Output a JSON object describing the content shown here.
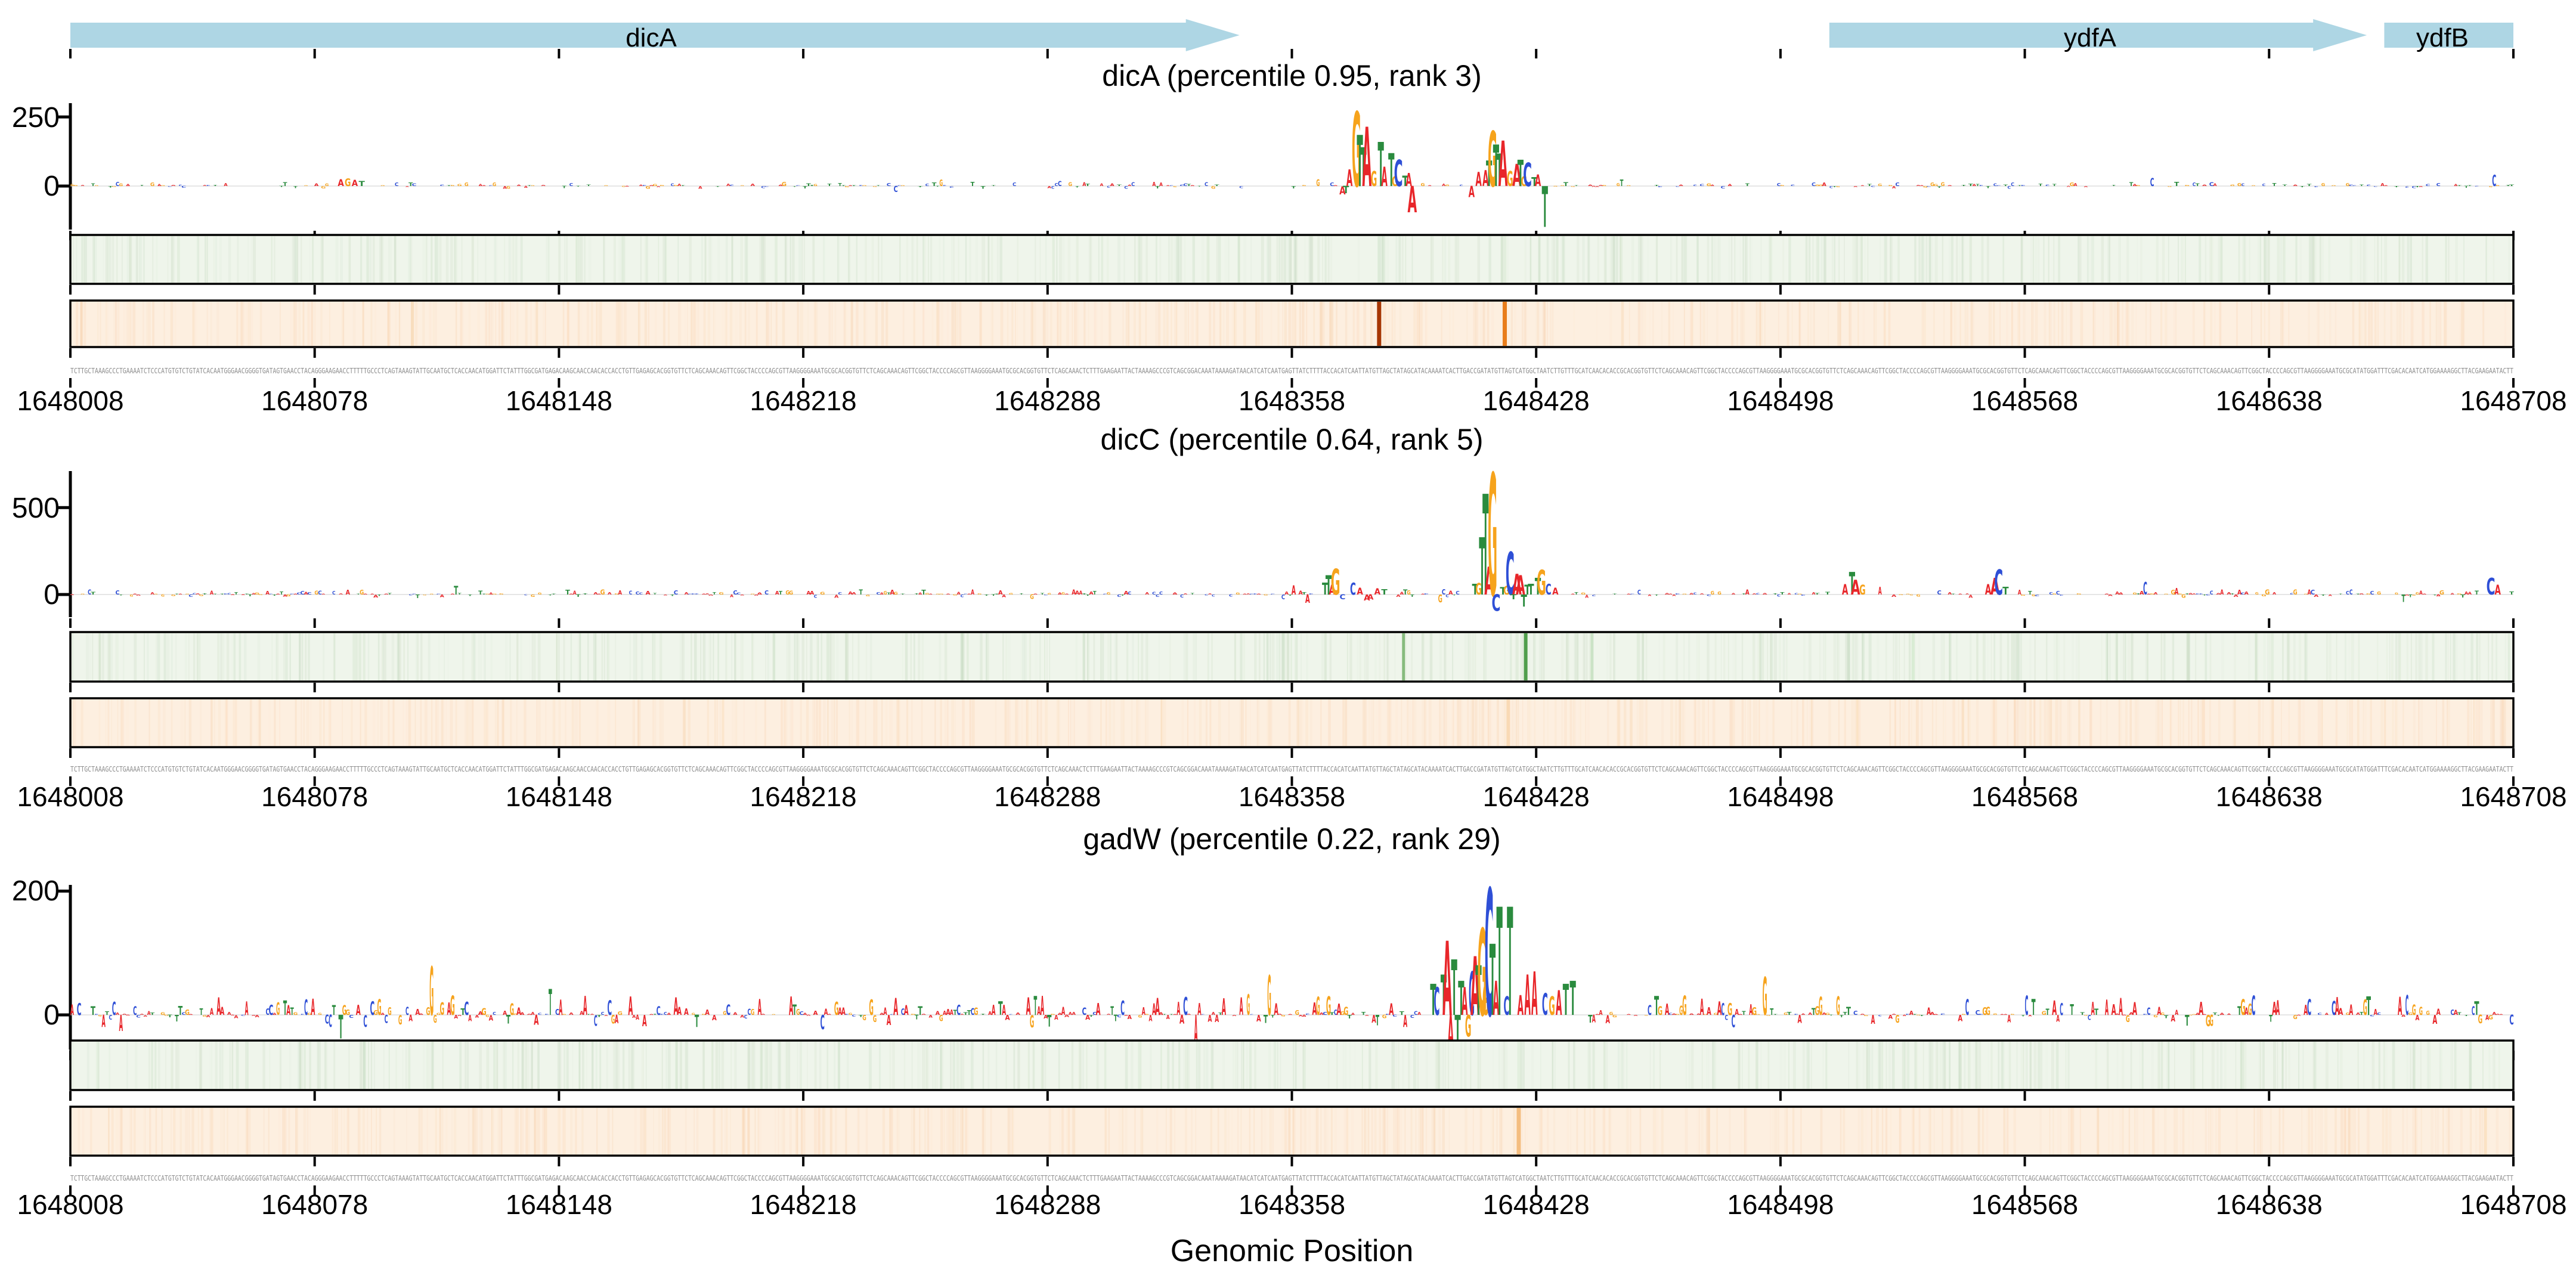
{
  "figure": {
    "background": "#ffffff",
    "xlabel": "Genomic Position"
  },
  "axis": {
    "start": 1648008,
    "end": 1648708,
    "tick_step": 70,
    "tick_labels": [
      "1648008",
      "1648078",
      "1648148",
      "1648218",
      "1648288",
      "1648358",
      "1648428",
      "1648498",
      "1648568",
      "1648638",
      "1648708"
    ]
  },
  "genes": [
    {
      "name": "dicA",
      "start": 1648008,
      "end": 1648343,
      "arrow": true
    },
    {
      "name": "ydfA",
      "start": 1648512,
      "end": 1648666,
      "arrow": true
    },
    {
      "name": "ydfB",
      "start": 1648671,
      "end": 1648708,
      "arrow": false
    }
  ],
  "colors": {
    "gene": "#aed6e4",
    "axis": "#000000",
    "seq_text": "#8c8c8c",
    "base_A": "#e8262a",
    "base_C": "#2e4fd6",
    "base_G": "#f6a31c",
    "base_T": "#2a8b3e",
    "green_strip_bg": "#eff5eb",
    "green_texture": "#7aa86f",
    "orange_strip_bg": "#fdefe0",
    "orange_texture": "#f0a860"
  },
  "sequence": {
    "start_fragment": "TCTTGCTAAAGCCCTGAAAATCTCCCATGTGTCTGTATCACAATGGGAACGGGGTGATAGTGAACCTACAGGGAAGAACCTTTTTGCCCTCAGTAAAGTATTGCAATGCTCACCAACATGGATTCTATTTGGCGATGAGACAAGCAACCAACACCACCTGTTGAGA",
    "mid_fragment": "TCTTTGAAGAATTACTAAAAGCCCGTCAGCGGACAAATAAAAGATAACATCATCAATGAGTTATCTTTTACCACATCAATTATGTTAGCTATAGCATACAAAATCACTTGACCGATATGTTAGTCATGGCTAATCTTGTTTGCATCAACACACC",
    "end_fragment": "ATATGGATTTCGACACAATCATGGAAAAGGCTTACGAAGAATACTT",
    "filler": "GCACGGTGTTCTCAGCAAACAGTTCGGCTACCCCAGCGTTAAGGGGAAATGC"
  },
  "chart_data": [
    {
      "type": "sequence-logo",
      "name": "dicA",
      "title": "dicA (percentile 0.95, rank 3)",
      "percentile": 0.95,
      "rank": 3,
      "ylim": [
        -160,
        300
      ],
      "yticks": [
        0,
        250
      ],
      "ymax_label": "250",
      "zero_label": "0",
      "peaks": [
        [
          1648085,
          "A",
          25
        ],
        [
          1648087,
          "G",
          28
        ],
        [
          1648089,
          "A",
          22
        ],
        [
          1648091,
          "T",
          18
        ],
        [
          1648372,
          "A",
          -30
        ],
        [
          1648373,
          "T",
          -26
        ],
        [
          1648374,
          "A",
          60
        ],
        [
          1648376,
          "G",
          270
        ],
        [
          1648377,
          "T",
          185
        ],
        [
          1648378,
          "T",
          140
        ],
        [
          1648379,
          "A",
          215
        ],
        [
          1648381,
          "G",
          55
        ],
        [
          1648383,
          "T",
          160
        ],
        [
          1648384,
          "A",
          70
        ],
        [
          1648386,
          "T",
          120
        ],
        [
          1648387,
          "G",
          35
        ],
        [
          1648388,
          "C",
          95
        ],
        [
          1648390,
          "T",
          38
        ],
        [
          1648391,
          "A",
          48
        ],
        [
          1648392,
          "A",
          -95
        ],
        [
          1648409,
          "A",
          -40
        ],
        [
          1648411,
          "A",
          50
        ],
        [
          1648413,
          "A",
          58
        ],
        [
          1648414,
          "T",
          92
        ],
        [
          1648415,
          "G",
          200
        ],
        [
          1648416,
          "T",
          150
        ],
        [
          1648417,
          "T",
          118
        ],
        [
          1648418,
          "A",
          165
        ],
        [
          1648420,
          "G",
          55
        ],
        [
          1648422,
          "A",
          80
        ],
        [
          1648423,
          "T",
          95
        ],
        [
          1648424,
          "G",
          35
        ],
        [
          1648425,
          "C",
          85
        ],
        [
          1648427,
          "T",
          32
        ],
        [
          1648428,
          "A",
          42
        ],
        [
          1648430,
          "T",
          -148
        ]
      ],
      "exclude": [
        [
          1648371,
          1648393
        ],
        [
          1648408,
          1648432
        ],
        [
          1648083,
          1648093
        ]
      ],
      "noise": {
        "seed": 11,
        "amp": 14,
        "density": 0.55,
        "red_bias": 0.0
      },
      "green_lines": [
        {
          "pos": 1648383,
          "color": "#dcead8",
          "w": 5
        },
        {
          "pos": 1648419,
          "color": "#e2eedd",
          "w": 5
        }
      ],
      "orange_lines": [
        {
          "pos": 1648106,
          "color": "#f8ddbd",
          "w": 5
        },
        {
          "pos": 1648383,
          "color": "#a63603",
          "w": 7
        },
        {
          "pos": 1648419,
          "color": "#e87d1c",
          "w": 7
        }
      ]
    },
    {
      "type": "sequence-logo",
      "name": "dicC",
      "title": "dicC (percentile 0.64, rank 5)",
      "percentile": 0.64,
      "rank": 5,
      "ylim": [
        -130,
        710
      ],
      "yticks": [
        0,
        500
      ],
      "ymax_label": "500",
      "zero_label": "0",
      "peaks": [
        [
          1648367,
          "T",
          70
        ],
        [
          1648368,
          "T",
          112
        ],
        [
          1648369,
          "A",
          55
        ],
        [
          1648370,
          "G",
          150
        ],
        [
          1648372,
          "C",
          -28
        ],
        [
          1648375,
          "C",
          70
        ],
        [
          1648377,
          "A",
          40
        ],
        [
          1648379,
          "A",
          -34
        ],
        [
          1648380,
          "A",
          -30
        ],
        [
          1648382,
          "A",
          36
        ],
        [
          1648384,
          "T",
          30
        ],
        [
          1648410,
          "T",
          62
        ],
        [
          1648411,
          "G",
          66
        ],
        [
          1648412,
          "T",
          330
        ],
        [
          1648413,
          "T",
          580
        ],
        [
          1648414,
          "A",
          160
        ],
        [
          1648415,
          "G",
          700
        ],
        [
          1648416,
          "C",
          -95
        ],
        [
          1648418,
          "T",
          42
        ],
        [
          1648419,
          "G",
          48
        ],
        [
          1648420,
          "C",
          245
        ],
        [
          1648421,
          "T",
          -28
        ],
        [
          1648422,
          "A",
          118
        ],
        [
          1648423,
          "A",
          112
        ],
        [
          1648424,
          "T",
          -68
        ],
        [
          1648425,
          "T",
          55
        ],
        [
          1648426,
          "T",
          62
        ],
        [
          1648428,
          "T",
          96
        ],
        [
          1648429,
          "G",
          142
        ],
        [
          1648431,
          "C",
          62
        ],
        [
          1648433,
          "A",
          40
        ],
        [
          1648516,
          "A",
          60
        ],
        [
          1648518,
          "T",
          130
        ],
        [
          1648519,
          "A",
          85
        ],
        [
          1648521,
          "G",
          55
        ],
        [
          1648557,
          "A",
          60
        ],
        [
          1648559,
          "A",
          95
        ],
        [
          1648560,
          "C",
          145
        ],
        [
          1648562,
          "T",
          45
        ],
        [
          1648701,
          "C",
          95
        ],
        [
          1648703,
          "A",
          55
        ]
      ],
      "exclude": [
        [
          1648364,
          1648387
        ],
        [
          1648406,
          1648436
        ],
        [
          1648513,
          1648524
        ],
        [
          1648554,
          1648565
        ],
        [
          1648698,
          1648706
        ]
      ],
      "noise": {
        "seed": 23,
        "amp": 25,
        "density": 0.62,
        "red_bias": 0.1
      },
      "green_lines": [
        {
          "pos": 1648390,
          "color": "#86bb7d",
          "w": 5
        },
        {
          "pos": 1648425,
          "color": "#4f9e4b",
          "w": 6
        },
        {
          "pos": 1648444,
          "color": "#cbe3c6",
          "w": 5
        },
        {
          "pos": 1648536,
          "color": "#d9ecd4",
          "w": 5
        }
      ],
      "orange_lines": [
        {
          "pos": 1648195,
          "color": "#fce6cc",
          "w": 4
        },
        {
          "pos": 1648420,
          "color": "#f9d9b5",
          "w": 6
        },
        {
          "pos": 1648520,
          "color": "#fbe3c6",
          "w": 4
        }
      ]
    },
    {
      "type": "sequence-logo",
      "name": "gadW",
      "title": "gadW (percentile 0.22, rank 29)",
      "percentile": 0.22,
      "rank": 29,
      "ylim": [
        -60,
        210
      ],
      "yticks": [
        0,
        200
      ],
      "ymax_label": "200",
      "zero_label": "0",
      "peaks": [
        [
          1648398,
          "T",
          50
        ],
        [
          1648399,
          "C",
          45
        ],
        [
          1648401,
          "T",
          65
        ],
        [
          1648402,
          "A",
          120
        ],
        [
          1648403,
          "A",
          -55
        ],
        [
          1648404,
          "T",
          90
        ],
        [
          1648405,
          "T",
          -42
        ],
        [
          1648406,
          "T",
          55
        ],
        [
          1648407,
          "A",
          45
        ],
        [
          1648408,
          "G",
          -35
        ],
        [
          1648409,
          "C",
          70
        ],
        [
          1648410,
          "A",
          95
        ],
        [
          1648411,
          "T",
          80
        ],
        [
          1648412,
          "G",
          140
        ],
        [
          1648413,
          "G",
          50
        ],
        [
          1648414,
          "C",
          205
        ],
        [
          1648415,
          "T",
          115
        ],
        [
          1648416,
          "A",
          55
        ],
        [
          1648417,
          "T",
          175
        ],
        [
          1648419,
          "C",
          30
        ],
        [
          1648420,
          "T",
          175
        ],
        [
          1648423,
          "A",
          32
        ],
        [
          1648425,
          "A",
          65
        ],
        [
          1648427,
          "A",
          70
        ],
        [
          1648430,
          "C",
          35
        ],
        [
          1648432,
          "G",
          30
        ],
        [
          1648434,
          "A",
          40
        ],
        [
          1648436,
          "T",
          50
        ],
        [
          1648438,
          "T",
          55
        ]
      ],
      "exclude": [
        [
          1648395,
          1648442
        ]
      ],
      "noise": {
        "seed": 37,
        "amp": 30,
        "density": 0.75,
        "red_bias": 0.3
      },
      "green_lines": [
        {
          "pos": 1648423,
          "color": "#e3efde",
          "w": 5
        }
      ],
      "orange_lines": [
        {
          "pos": 1648423,
          "color": "#f4bd7f",
          "w": 7
        },
        {
          "pos": 1648700,
          "color": "#fbe2c4",
          "w": 5
        }
      ]
    }
  ]
}
